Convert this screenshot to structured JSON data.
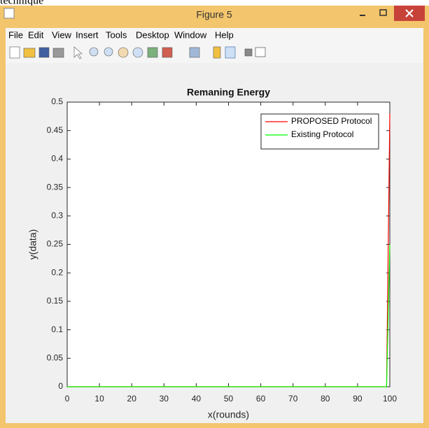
{
  "top_text": "technique",
  "window": {
    "title": "Figure 5",
    "menu": [
      "File",
      "Edit",
      "View",
      "Insert",
      "Tools",
      "Desktop",
      "Window",
      "Help"
    ]
  },
  "chart_data": {
    "type": "line",
    "title": "Remaning Energy",
    "x_label": "x(rounds)",
    "y_label": "y(data)",
    "x": [
      0,
      99,
      100
    ],
    "series": [
      {
        "name": "PROPOSED Protocol",
        "color": "#ff0000",
        "values": [
          0,
          0,
          0.48
        ]
      },
      {
        "name": "Existing Protocol",
        "color": "#00ff00",
        "values": [
          0,
          0,
          0.25
        ]
      }
    ],
    "xlim": [
      0,
      100
    ],
    "xticks": [
      0,
      10,
      20,
      30,
      40,
      50,
      60,
      70,
      80,
      90,
      100
    ],
    "ylim": [
      0,
      0.5
    ],
    "yticks": [
      0,
      0.05,
      0.1,
      0.15,
      0.2,
      0.25,
      0.3,
      0.35,
      0.4,
      0.45,
      0.5
    ],
    "legend": "upper right"
  }
}
